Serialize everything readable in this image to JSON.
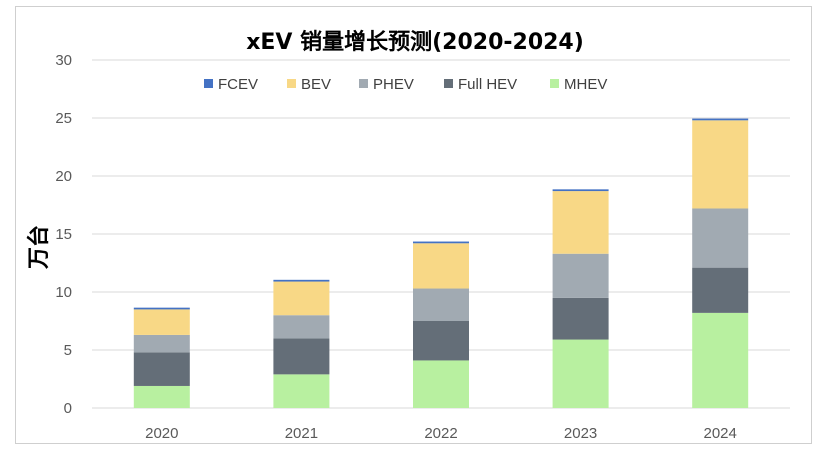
{
  "chart_data": {
    "type": "stacked-bar",
    "title": "xEV 销量增长预测(2020-2024)",
    "xlabel": "",
    "ylabel": "万台",
    "ylim": [
      0,
      30
    ],
    "yticks": [
      0,
      5,
      10,
      15,
      20,
      25,
      30
    ],
    "grid": true,
    "legend_position": "top",
    "categories": [
      "2020",
      "2021",
      "2022",
      "2023",
      "2024"
    ],
    "series": [
      {
        "name": "MHEV",
        "color": "#b8f0a0",
        "values": [
          1.9,
          2.9,
          4.1,
          5.9,
          8.2
        ]
      },
      {
        "name": "Full HEV",
        "color": "#646e78",
        "values": [
          2.9,
          3.1,
          3.4,
          3.6,
          3.9
        ]
      },
      {
        "name": "PHEV",
        "color": "#a1aab2",
        "values": [
          1.5,
          2.0,
          2.8,
          3.8,
          5.1
        ]
      },
      {
        "name": "BEV",
        "color": "#f8d886",
        "values": [
          2.2,
          2.9,
          3.9,
          5.4,
          7.6
        ]
      },
      {
        "name": "FCEV",
        "color": "#4472c4",
        "values": [
          0.15,
          0.15,
          0.15,
          0.15,
          0.15
        ]
      }
    ],
    "legend_order": [
      "FCEV",
      "BEV",
      "PHEV",
      "Full HEV",
      "MHEV"
    ]
  }
}
